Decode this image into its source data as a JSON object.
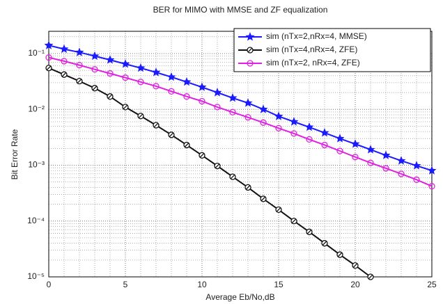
{
  "chart_data": {
    "type": "line",
    "title": "BER for MIMO with MMSE and ZF equalization",
    "x_label": "Average Eb/No,dB",
    "y_label": "Bit Error Rate",
    "x": [
      0,
      1,
      2,
      3,
      4,
      5,
      6,
      7,
      8,
      9,
      10,
      11,
      12,
      13,
      14,
      15,
      16,
      17,
      18,
      19,
      20,
      21,
      22,
      23,
      24,
      25
    ],
    "series": [
      {
        "name": "sim (nTx=2,nRx=4, MMSE)",
        "color": "#1a1aff",
        "marker": "star",
        "values": [
          0.14,
          0.12,
          0.105,
          0.09,
          0.077,
          0.065,
          0.055,
          0.046,
          0.038,
          0.031,
          0.025,
          0.02,
          0.016,
          0.013,
          0.01,
          0.0075,
          0.006,
          0.0048,
          0.0038,
          0.003,
          0.0024,
          0.0019,
          0.0015,
          0.0012,
          0.00098,
          0.0008
        ]
      },
      {
        "name": "sim (nTx=4,nRx=4, ZFE)",
        "color": "#111111",
        "marker": "diamond-circle",
        "values": [
          0.055,
          0.042,
          0.032,
          0.024,
          0.017,
          0.011,
          0.0076,
          0.0052,
          0.0035,
          0.0023,
          0.0015,
          0.00097,
          0.00062,
          0.0004,
          0.00025,
          0.00016,
          0.0001,
          6.4e-05,
          4e-05,
          2.5e-05,
          1.6e-05,
          1e-05,
          null,
          null,
          null,
          null
        ]
      },
      {
        "name": "sim (nTx=2, nRx=4, ZFE)",
        "color": "#e020e0",
        "marker": "circle",
        "values": [
          0.085,
          0.073,
          0.062,
          0.052,
          0.044,
          0.037,
          0.031,
          0.026,
          0.021,
          0.017,
          0.014,
          0.011,
          0.0089,
          0.0072,
          0.0058,
          0.0046,
          0.0037,
          0.0029,
          0.0023,
          0.0018,
          0.0014,
          0.0011,
          0.00088,
          0.0007,
          0.00055,
          0.00042
        ]
      }
    ],
    "xlim": [
      0,
      25
    ],
    "xticks": [
      0,
      5,
      10,
      15,
      20,
      25
    ],
    "ylim": [
      1e-05,
      0.25
    ],
    "log_y": true,
    "yticks": [
      {
        "value": 1e-05,
        "label": "10⁻⁵"
      },
      {
        "value": 0.0001,
        "label": "10⁻⁴"
      },
      {
        "value": 0.001,
        "label": "10⁻³"
      },
      {
        "value": 0.01,
        "label": "10⁻²"
      },
      {
        "value": 0.1,
        "label": "10⁻¹"
      }
    ],
    "grid": true,
    "minor_grid": true,
    "legend": "top-right"
  }
}
